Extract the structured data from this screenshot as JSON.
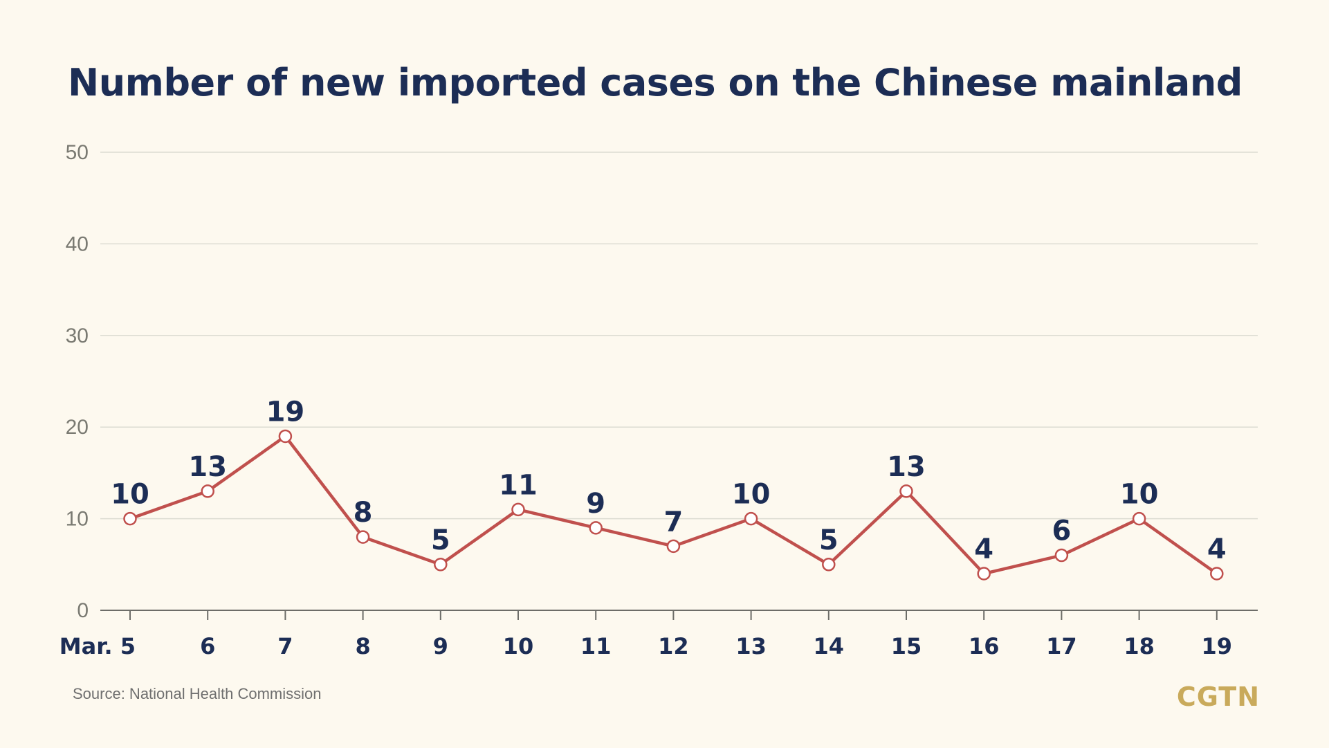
{
  "chart_data": {
    "type": "line",
    "title": "Number of new imported cases on the Chinese mainland",
    "categories": [
      "Mar. 5",
      "6",
      "7",
      "8",
      "9",
      "10",
      "11",
      "12",
      "13",
      "14",
      "15",
      "16",
      "17",
      "18",
      "19"
    ],
    "series": [
      {
        "values": [
          10,
          13,
          19,
          8,
          5,
          11,
          9,
          7,
          10,
          5,
          13,
          4,
          6,
          10,
          4
        ]
      }
    ],
    "data_labels": [
      "10",
      "13",
      "19",
      "8",
      "5",
      "11",
      "9",
      "7",
      "10",
      "5",
      "13",
      "4",
      "6",
      "10",
      "4"
    ],
    "yticks": [
      0,
      10,
      20,
      30,
      40,
      50
    ],
    "ylim": [
      0,
      50
    ],
    "grid": true,
    "xlabel": "",
    "ylabel": ""
  },
  "source": "Source: National Health Commission",
  "logo": "CGTN",
  "colors": {
    "background": "#fdf9ef",
    "line": "#c0504d",
    "title": "#1c2d55",
    "grid": "#dcdcd2",
    "logo": "#c9aa5b"
  }
}
